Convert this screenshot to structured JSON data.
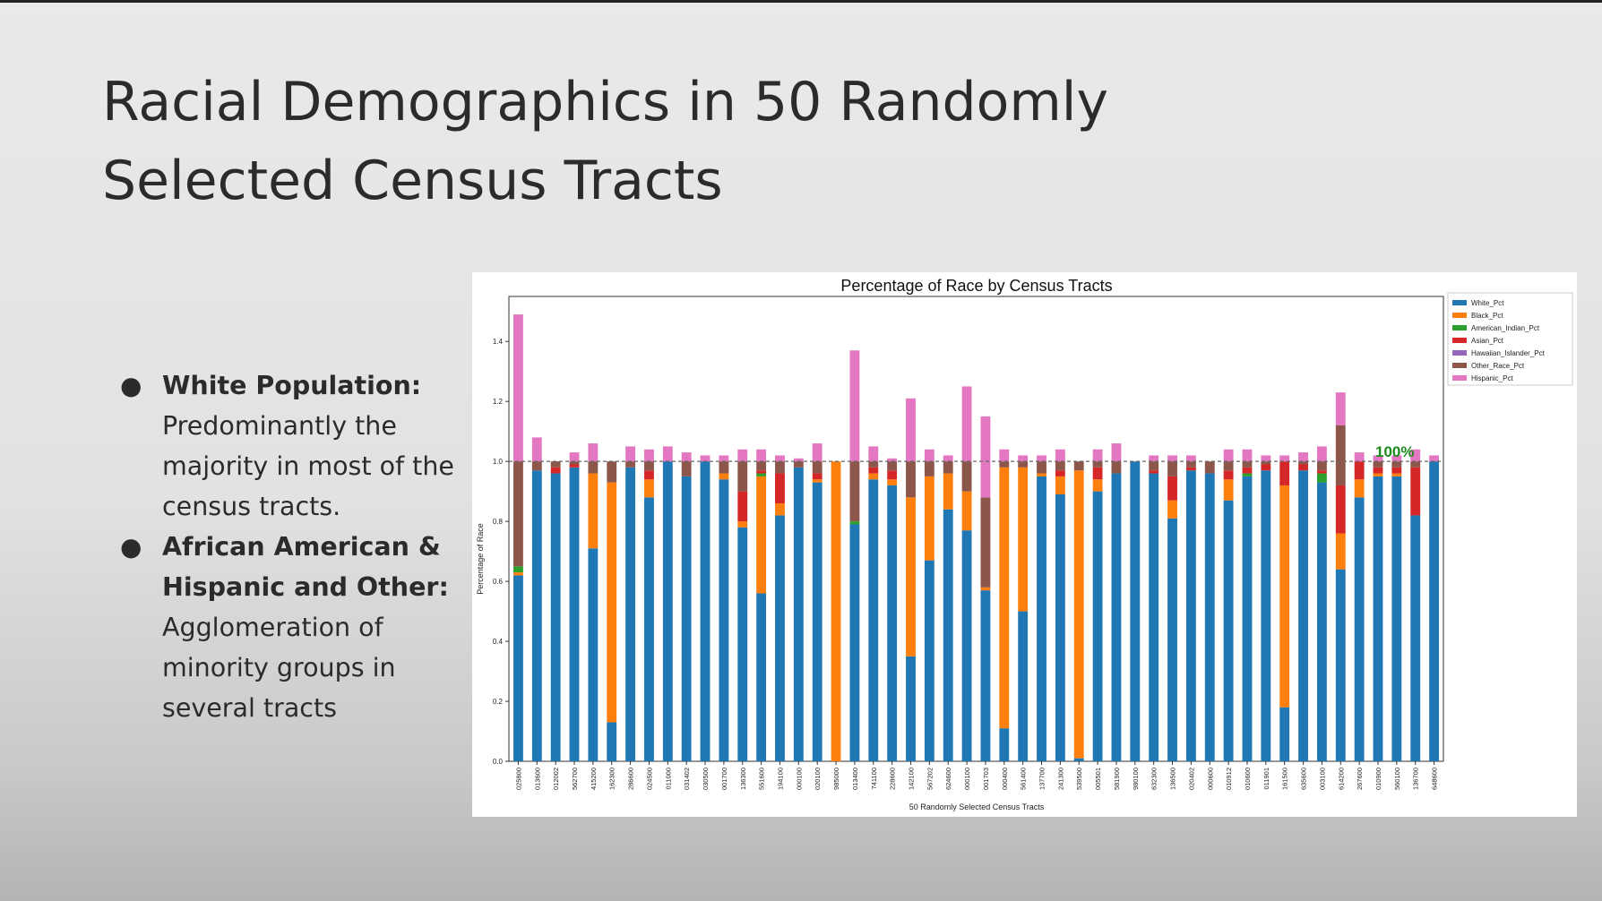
{
  "slide": {
    "title_line1": "Racial Demographics in 50 Randomly",
    "title_line2": "Selected Census Tracts",
    "bullets": [
      {
        "heading_line1": "White Population:",
        "heading_line2": "",
        "body_lines": [
          "Predominantly the",
          "majority in most of the",
          "census tracts."
        ]
      },
      {
        "heading_line1": "African American &",
        "heading_line2": "Hispanic and Other:",
        "body_lines": [
          "Agglomeration of",
          "minority groups  in",
          "several tracts"
        ]
      }
    ]
  },
  "chart_data": {
    "type": "bar",
    "stacked": true,
    "title": "Percentage of Race by Census Tracts",
    "xlabel": "50 Randomly Selected Census Tracts",
    "ylabel": "Percentage of Race",
    "ylim": [
      0,
      1.55
    ],
    "yticks": [
      "0.0",
      "0.2",
      "0.4",
      "0.6",
      "0.8",
      "1.0",
      "1.2",
      "1.4"
    ],
    "reference_line": 1.0,
    "annotation": "100%",
    "legend_position": "outside-top-right",
    "categories": [
      "025800",
      "013600",
      "012002",
      "562700",
      "415200",
      "162300",
      "286600",
      "024500",
      "011000",
      "031402",
      "030500",
      "001700",
      "136300",
      "551600",
      "194100",
      "000100",
      "020100",
      "985000",
      "013400",
      "741100",
      "228600",
      "142100",
      "567202",
      "624600",
      "000100",
      "001703",
      "000400",
      "561400",
      "137700",
      "241300",
      "539500",
      "005501",
      "581900",
      "980100",
      "632300",
      "136500",
      "020402",
      "000600",
      "010912",
      "010600",
      "011901",
      "161500",
      "635600",
      "003100",
      "614200",
      "267600",
      "010900",
      "560100",
      "136700",
      "648600"
    ],
    "series": [
      {
        "name": "White_Pct",
        "color": "#1f77b4",
        "values": [
          0.62,
          0.97,
          0.96,
          0.98,
          0.71,
          0.13,
          0.98,
          0.88,
          1.0,
          0.95,
          1.0,
          0.94,
          0.78,
          0.56,
          0.82,
          0.98,
          0.93,
          0.0,
          0.79,
          0.94,
          0.92,
          0.35,
          0.67,
          0.84,
          0.77,
          0.57,
          0.11,
          0.5,
          0.95,
          0.89,
          0.01,
          0.9,
          0.96,
          1.0,
          0.96,
          0.81,
          0.97,
          0.96,
          0.87,
          0.95,
          0.97,
          0.18,
          0.97,
          0.93,
          0.64,
          0.88,
          0.95,
          0.95,
          0.82,
          1.0
        ]
      },
      {
        "name": "Black_Pct",
        "color": "#ff7f0e",
        "values": [
          0.01,
          0.0,
          0.0,
          0.0,
          0.25,
          0.8,
          0.0,
          0.06,
          0.0,
          0.0,
          0.0,
          0.02,
          0.02,
          0.39,
          0.04,
          0.0,
          0.01,
          1.0,
          0.0,
          0.02,
          0.02,
          0.53,
          0.28,
          0.12,
          0.13,
          0.01,
          0.87,
          0.48,
          0.01,
          0.06,
          0.96,
          0.04,
          0.0,
          0.0,
          0.0,
          0.06,
          0.0,
          0.0,
          0.07,
          0.0,
          0.0,
          0.74,
          0.0,
          0.0,
          0.12,
          0.06,
          0.01,
          0.01,
          0.0,
          0.0
        ]
      },
      {
        "name": "American_Indian_Pct",
        "color": "#2ca02c",
        "values": [
          0.02,
          0.0,
          0.0,
          0.0,
          0.0,
          0.0,
          0.0,
          0.0,
          0.0,
          0.0,
          0.0,
          0.0,
          0.0,
          0.01,
          0.0,
          0.0,
          0.0,
          0.0,
          0.01,
          0.0,
          0.0,
          0.0,
          0.0,
          0.0,
          0.0,
          0.0,
          0.0,
          0.0,
          0.0,
          0.0,
          0.0,
          0.0,
          0.0,
          0.0,
          0.0,
          0.0,
          0.0,
          0.0,
          0.0,
          0.01,
          0.0,
          0.0,
          0.0,
          0.03,
          0.0,
          0.0,
          0.0,
          0.0,
          0.0,
          0.0
        ]
      },
      {
        "name": "Asian_Pct",
        "color": "#d62728",
        "values": [
          0.0,
          0.0,
          0.02,
          0.01,
          0.0,
          0.0,
          0.0,
          0.03,
          0.0,
          0.0,
          0.0,
          0.0,
          0.1,
          0.01,
          0.1,
          0.0,
          0.02,
          0.0,
          0.0,
          0.02,
          0.03,
          0.0,
          0.0,
          0.0,
          0.0,
          0.0,
          0.0,
          0.0,
          0.0,
          0.02,
          0.0,
          0.04,
          0.0,
          0.0,
          0.01,
          0.08,
          0.01,
          0.0,
          0.03,
          0.02,
          0.02,
          0.08,
          0.02,
          0.01,
          0.16,
          0.06,
          0.02,
          0.02,
          0.16,
          0.0
        ]
      },
      {
        "name": "Hawaiian_Islander_Pct",
        "color": "#9467bd",
        "values": [
          0.0,
          0.0,
          0.0,
          0.0,
          0.0,
          0.0,
          0.0,
          0.0,
          0.0,
          0.0,
          0.0,
          0.0,
          0.0,
          0.0,
          0.0,
          0.0,
          0.0,
          0.0,
          0.0,
          0.0,
          0.0,
          0.0,
          0.0,
          0.0,
          0.0,
          0.0,
          0.0,
          0.0,
          0.0,
          0.0,
          0.0,
          0.0,
          0.0,
          0.0,
          0.0,
          0.0,
          0.0,
          0.0,
          0.0,
          0.0,
          0.0,
          0.0,
          0.0,
          0.0,
          0.0,
          0.0,
          0.0,
          0.0,
          0.0,
          0.0
        ]
      },
      {
        "name": "Other_Race_Pct",
        "color": "#8c564b",
        "values": [
          0.35,
          0.03,
          0.02,
          0.01,
          0.04,
          0.07,
          0.02,
          0.03,
          0.0,
          0.05,
          0.0,
          0.04,
          0.1,
          0.03,
          0.04,
          0.02,
          0.04,
          0.0,
          0.2,
          0.02,
          0.03,
          0.12,
          0.05,
          0.04,
          0.1,
          0.3,
          0.02,
          0.02,
          0.04,
          0.03,
          0.03,
          0.02,
          0.04,
          0.0,
          0.03,
          0.05,
          0.02,
          0.04,
          0.03,
          0.02,
          0.01,
          0.0,
          0.01,
          0.03,
          0.2,
          0.0,
          0.02,
          0.02,
          0.02,
          0.0
        ]
      },
      {
        "name": "Hispanic_Pct",
        "color": "#e377c2",
        "values": [
          0.49,
          0.08,
          0.0,
          0.03,
          0.06,
          0.0,
          0.05,
          0.04,
          0.05,
          0.03,
          0.02,
          0.02,
          0.04,
          0.04,
          0.02,
          0.01,
          0.06,
          0.0,
          0.37,
          0.05,
          0.01,
          0.21,
          0.04,
          0.02,
          0.25,
          0.27,
          0.04,
          0.02,
          0.02,
          0.04,
          0.0,
          0.04,
          0.06,
          0.0,
          0.02,
          0.02,
          0.02,
          0.0,
          0.04,
          0.04,
          0.02,
          0.02,
          0.03,
          0.05,
          0.11,
          0.03,
          0.02,
          0.02,
          0.04,
          0.02
        ]
      }
    ]
  }
}
